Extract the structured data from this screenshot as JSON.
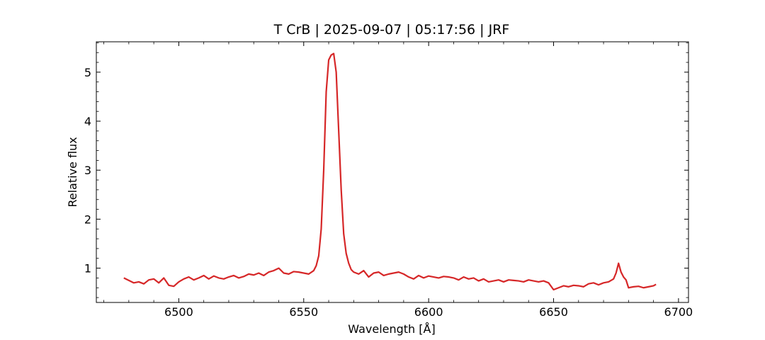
{
  "chart_data": {
    "type": "line",
    "title": "T CrB | 2025-09-07 | 05:17:56 | JRF",
    "xlabel": "Wavelength [Å]",
    "ylabel": "Relative flux",
    "xlim": [
      6467,
      6704
    ],
    "ylim": [
      0.3,
      5.62
    ],
    "xticks": [
      6500,
      6550,
      6600,
      6650,
      6700
    ],
    "yticks": [
      1,
      2,
      3,
      4,
      5
    ],
    "grid": false,
    "legend": "none",
    "series": [
      {
        "color": "#d62728",
        "x": [
          6478,
          6480,
          6482,
          6484,
          6486,
          6488,
          6490,
          6492,
          6494,
          6496,
          6498,
          6500,
          6502,
          6504,
          6506,
          6508,
          6510,
          6512,
          6514,
          6516,
          6518,
          6520,
          6522,
          6524,
          6526,
          6528,
          6530,
          6532,
          6534,
          6536,
          6538,
          6540,
          6542,
          6544,
          6546,
          6548,
          6550,
          6552,
          6554,
          6555,
          6556,
          6557,
          6558,
          6559,
          6560,
          6561,
          6562,
          6563,
          6564,
          6565,
          6566,
          6567,
          6568,
          6569,
          6570,
          6572,
          6574,
          6576,
          6578,
          6580,
          6582,
          6584,
          6586,
          6588,
          6590,
          6592,
          6594,
          6596,
          6598,
          6600,
          6602,
          6604,
          6606,
          6608,
          6610,
          6612,
          6614,
          6616,
          6618,
          6620,
          6622,
          6624,
          6626,
          6628,
          6630,
          6632,
          6634,
          6636,
          6638,
          6640,
          6642,
          6644,
          6646,
          6648,
          6650,
          6652,
          6654,
          6656,
          6658,
          6660,
          6662,
          6664,
          6666,
          6668,
          6670,
          6672,
          6674,
          6675,
          6676,
          6677,
          6678,
          6679,
          6680,
          6682,
          6684,
          6686,
          6688,
          6690,
          6691
        ],
        "y": [
          0.8,
          0.75,
          0.7,
          0.72,
          0.68,
          0.76,
          0.78,
          0.7,
          0.8,
          0.65,
          0.63,
          0.72,
          0.78,
          0.82,
          0.76,
          0.8,
          0.85,
          0.78,
          0.84,
          0.8,
          0.78,
          0.82,
          0.85,
          0.8,
          0.83,
          0.88,
          0.86,
          0.9,
          0.85,
          0.92,
          0.95,
          1.0,
          0.9,
          0.88,
          0.93,
          0.92,
          0.9,
          0.88,
          0.95,
          1.05,
          1.25,
          1.8,
          3.0,
          4.6,
          5.25,
          5.35,
          5.38,
          5.0,
          3.8,
          2.6,
          1.7,
          1.3,
          1.1,
          0.97,
          0.92,
          0.88,
          0.95,
          0.82,
          0.9,
          0.92,
          0.85,
          0.88,
          0.9,
          0.92,
          0.88,
          0.82,
          0.78,
          0.85,
          0.8,
          0.84,
          0.82,
          0.8,
          0.83,
          0.82,
          0.8,
          0.76,
          0.82,
          0.78,
          0.8,
          0.74,
          0.78,
          0.72,
          0.74,
          0.76,
          0.72,
          0.76,
          0.75,
          0.74,
          0.72,
          0.76,
          0.74,
          0.72,
          0.74,
          0.7,
          0.56,
          0.6,
          0.64,
          0.62,
          0.65,
          0.64,
          0.62,
          0.68,
          0.7,
          0.66,
          0.7,
          0.72,
          0.78,
          0.9,
          1.1,
          0.92,
          0.82,
          0.76,
          0.6,
          0.62,
          0.63,
          0.6,
          0.62,
          0.64,
          0.67
        ]
      }
    ]
  }
}
